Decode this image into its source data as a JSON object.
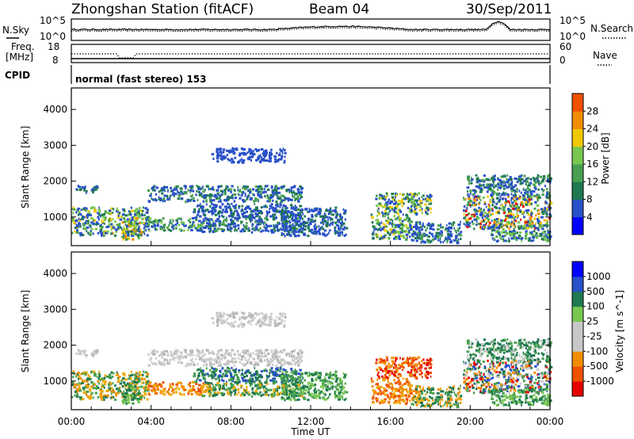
{
  "header": {
    "station": "Zhongshan Station (fitACF)",
    "beam": "Beam 04",
    "date": "30/Sep/2011"
  },
  "noise_panel": {
    "left_label": "N.Sky",
    "right_label": "N.Search",
    "tick_top": "10^5",
    "tick_bottom": "10^0"
  },
  "freq_panel": {
    "left_label_1": "Freq.",
    "left_label_2": "[MHz]",
    "left_tick_top": "18",
    "left_tick_bottom": "8",
    "right_label": "Nave",
    "right_tick_top": "60",
    "right_tick_bottom": "0"
  },
  "cpid": {
    "label": "CPID",
    "mode": "normal (fast stereo) 153"
  },
  "colors": {
    "power_scale": [
      "#0000ff",
      "#2850c8",
      "#1e7850",
      "#48a050",
      "#78c850",
      "#f0c800",
      "#f08c00",
      "#f05000",
      "#e60000"
    ],
    "velocity_scale": [
      "#e60000",
      "#f05000",
      "#f08c00",
      "#f0a800",
      "#c8c8c8",
      "#c8c8c8",
      "#78c850",
      "#1e7850",
      "#2850c8",
      "#0000ff"
    ]
  },
  "chart_data": [
    {
      "type": "heatmap",
      "name": "power",
      "ylabel": "Slant Range [km]",
      "yticks": [
        1000,
        2000,
        3000,
        4000
      ],
      "ylim": [
        200,
        4600
      ],
      "xlim": [
        0,
        24
      ],
      "colorbar": {
        "label": "Power [dB]",
        "ticks": [
          4,
          8,
          12,
          16,
          20,
          24,
          28
        ],
        "range": [
          0,
          32
        ]
      }
    },
    {
      "type": "heatmap",
      "name": "velocity",
      "ylabel": "Slant Range [km]",
      "yticks": [
        1000,
        2000,
        3000,
        4000
      ],
      "ylim": [
        200,
        4600
      ],
      "xlim": [
        0,
        24
      ],
      "xlabel": "Time UT",
      "xticks": [
        "00:00",
        "04:00",
        "08:00",
        "12:00",
        "16:00",
        "20:00",
        "00:00"
      ],
      "colorbar": {
        "label": "Velocity [m s^-1]",
        "ticks": [
          "1000",
          "500",
          "100",
          "25",
          "-25",
          "-100",
          "-500",
          "-1000"
        ]
      }
    }
  ]
}
